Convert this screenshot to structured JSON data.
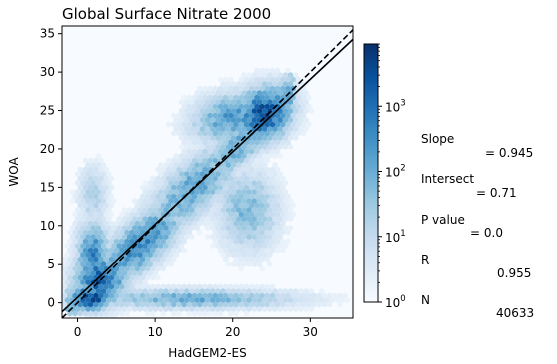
{
  "chart_data": {
    "type": "hexbin",
    "title": "Global Surface Nitrate 2000",
    "xlabel": "HadGEM2-ES",
    "ylabel": "WOA",
    "xlim": [
      -2,
      35.5
    ],
    "ylim": [
      -2,
      36
    ],
    "xticks": [
      0,
      10,
      20,
      30
    ],
    "yticks": [
      0,
      5,
      10,
      15,
      20,
      25,
      30,
      35
    ],
    "colorbar": {
      "scale": "log",
      "range": [
        1,
        9000
      ],
      "ticks": [
        {
          "value": 1,
          "base": "10",
          "exp": "0"
        },
        {
          "value": 10,
          "base": "10",
          "exp": "1"
        },
        {
          "value": 100,
          "base": "10",
          "exp": "2"
        },
        {
          "value": 1000,
          "base": "10",
          "exp": "3"
        }
      ],
      "colormap": "Blues"
    },
    "lines": [
      {
        "style": "solid",
        "slope": 0.945,
        "intercept": 0.71
      },
      {
        "style": "dashed",
        "slope": 1,
        "intercept": 0
      }
    ],
    "density_regions": [
      {
        "cx": 1.5,
        "cy": 0.5,
        "sx": 1.8,
        "sy": 1.2,
        "rot": 0,
        "peak": 3.8
      },
      {
        "cx": 2,
        "cy": 6,
        "sx": 1.6,
        "sy": 3.5,
        "rot": 0,
        "peak": 2.6
      },
      {
        "cx": 3,
        "cy": 3,
        "sx": 2.5,
        "sy": 2.5,
        "rot": 0.75,
        "peak": 3.2
      },
      {
        "cx": 8,
        "cy": 7.5,
        "sx": 5.5,
        "sy": 2.2,
        "rot": 0.75,
        "peak": 2.6
      },
      {
        "cx": 15,
        "cy": 15,
        "sx": 6,
        "sy": 2.5,
        "rot": 0.75,
        "peak": 2.1
      },
      {
        "cx": 24,
        "cy": 24.5,
        "sx": 3,
        "sy": 2.5,
        "rot": 0.75,
        "peak": 3.4
      },
      {
        "cx": 20,
        "cy": 24,
        "sx": 4,
        "sy": 2.5,
        "rot": 0.2,
        "peak": 2.3
      },
      {
        "cx": 15,
        "cy": 0.5,
        "sx": 10,
        "sy": 1.0,
        "rot": 0,
        "peak": 2.0
      },
      {
        "cx": 22,
        "cy": 12,
        "sx": 3,
        "sy": 4,
        "rot": 0,
        "peak": 1.8
      },
      {
        "cx": 2,
        "cy": 14,
        "sx": 1.5,
        "sy": 3,
        "rot": 0,
        "peak": 1.3
      }
    ]
  },
  "stats": [
    {
      "label": "Slope",
      "value": "= 0.945"
    },
    {
      "label": "Intersect",
      "value": "= 0.71"
    },
    {
      "label": "P value",
      "value": "= 0.0"
    },
    {
      "label": "R",
      "value": "0.955"
    },
    {
      "label": "N",
      "value": "40633"
    }
  ]
}
